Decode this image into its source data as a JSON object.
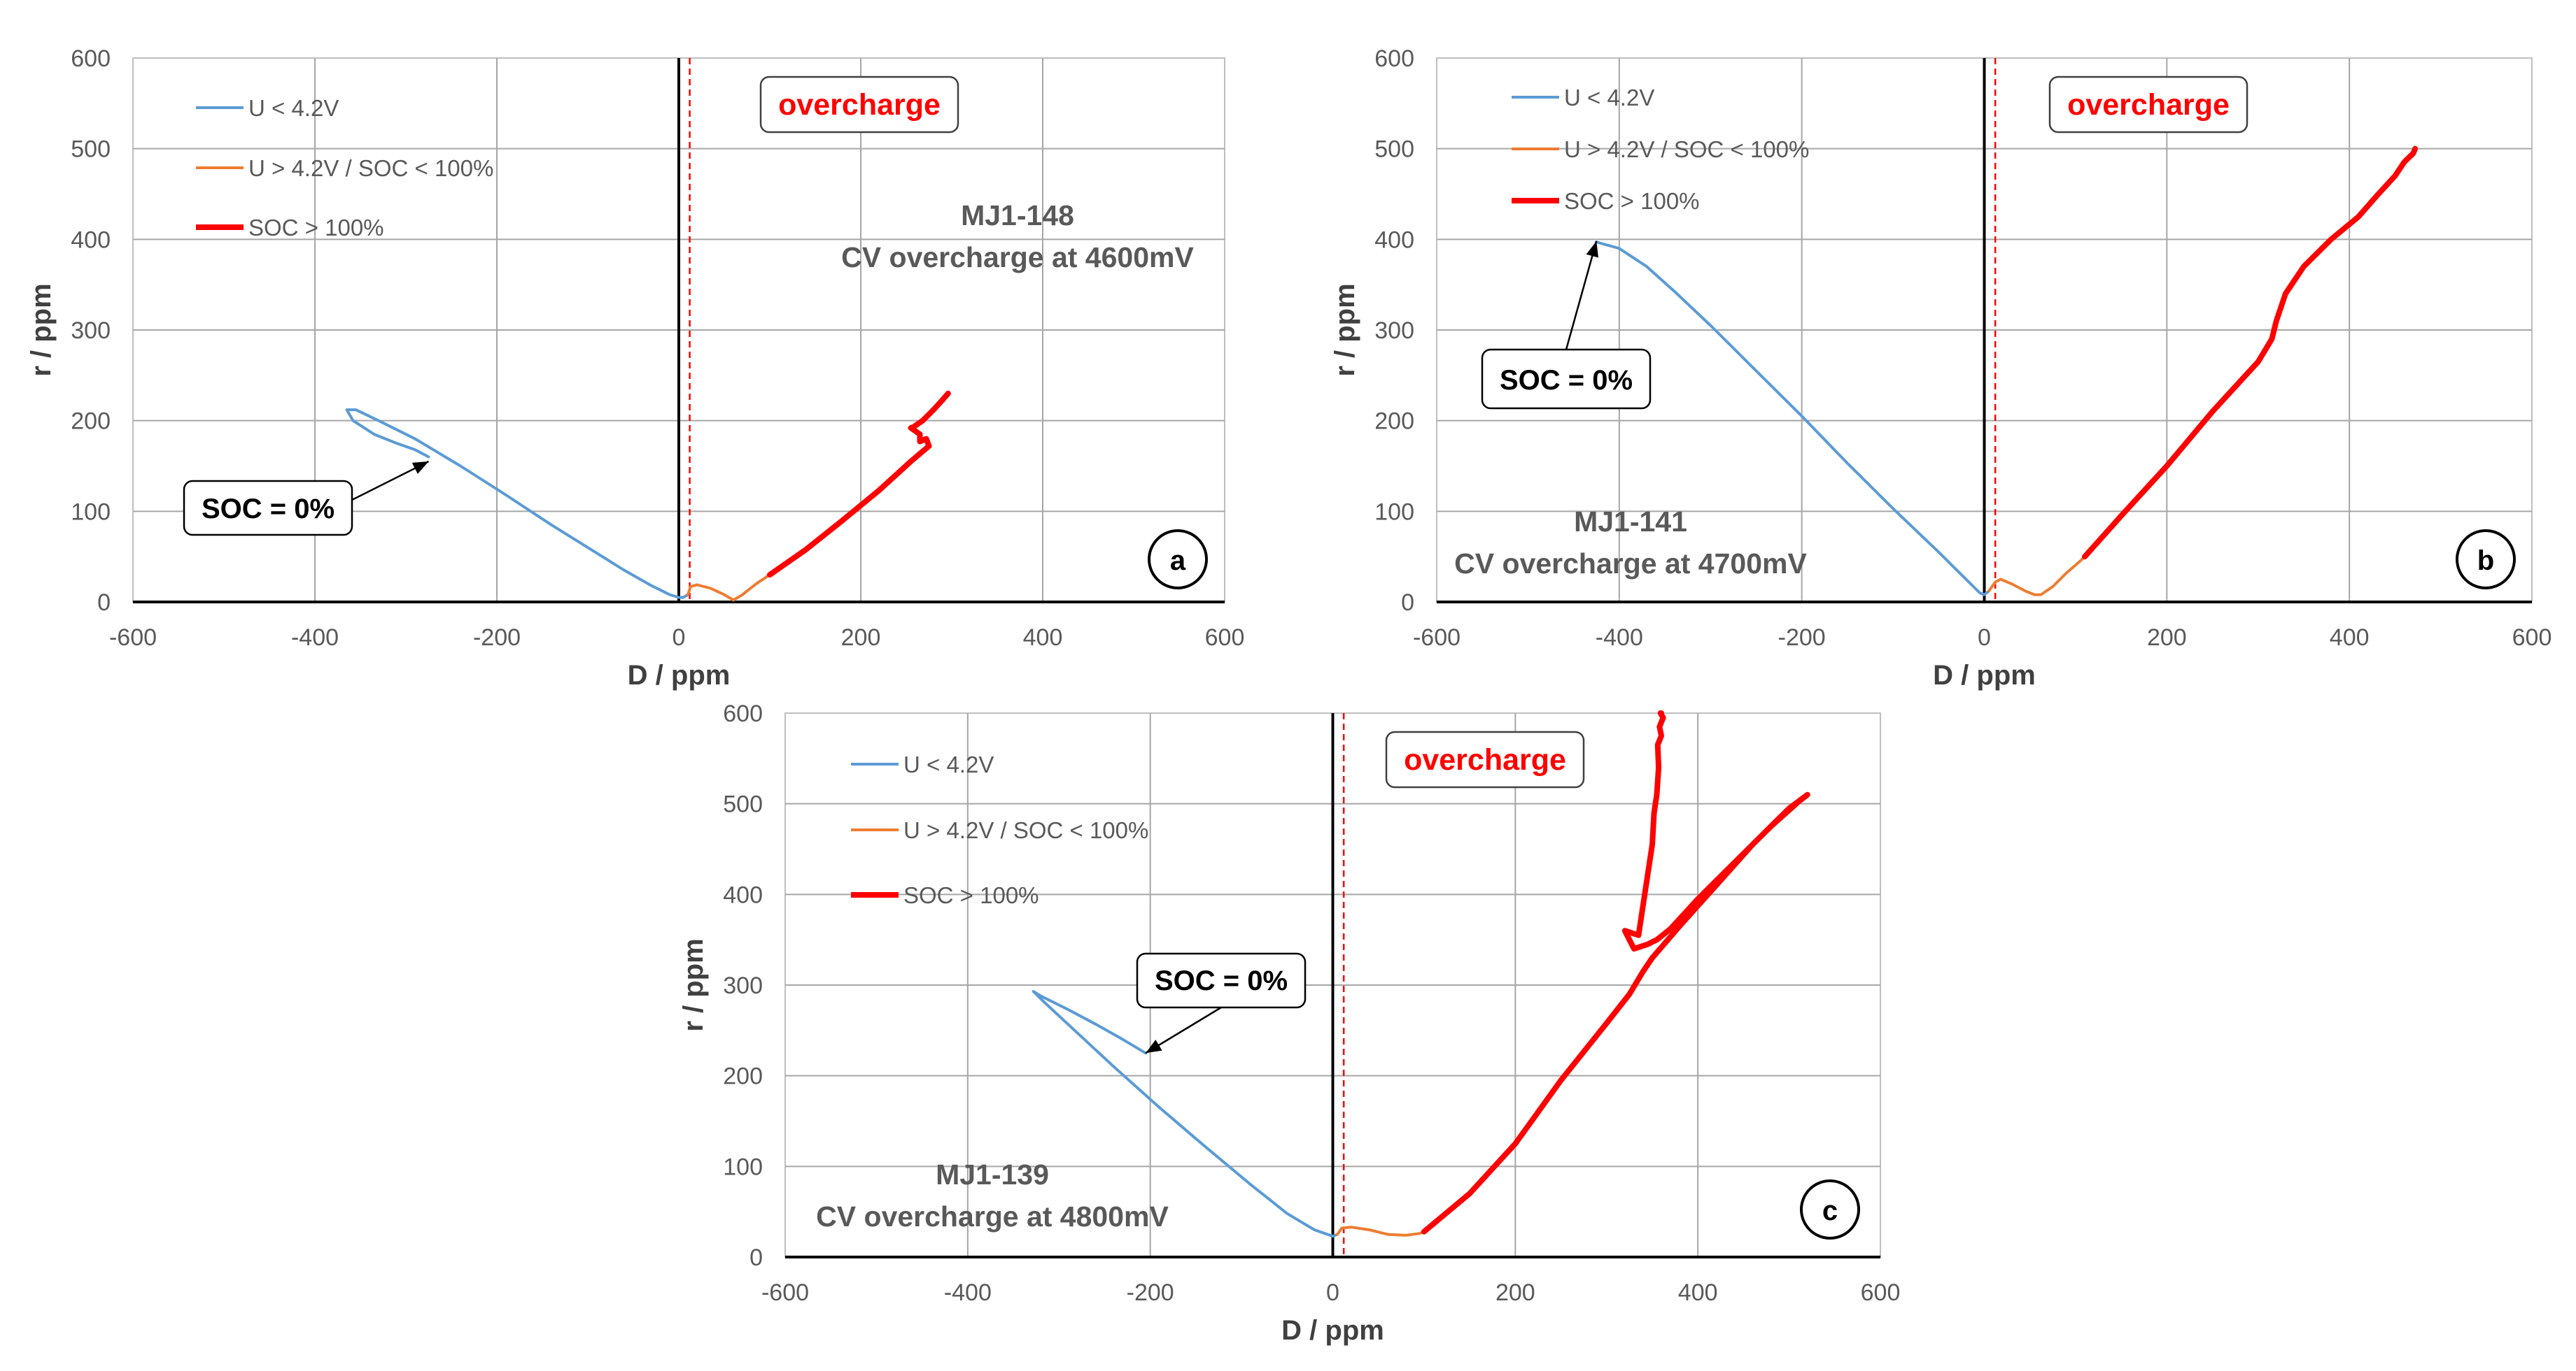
{
  "chart_data": [
    {
      "type": "line",
      "panel_label": "a",
      "sample": "MJ1-148",
      "description": "CV overcharge at 4600mV",
      "overcharge_label": "overcharge",
      "soc_label": "SOC = 0%",
      "xlabel": "D / ppm",
      "ylabel": "r / ppm",
      "xlim": [
        -600,
        600
      ],
      "ylim": [
        0,
        600
      ],
      "xticks": [
        "-600",
        "-400",
        "-200",
        "0",
        "200",
        "400",
        "600"
      ],
      "yticks": [
        "0",
        "100",
        "200",
        "300",
        "400",
        "500",
        "600"
      ],
      "soc_arrow_target": [
        -275,
        155
      ],
      "series": [
        {
          "name": "U < 4.2V",
          "color": "#5b9bd5",
          "width": "thin",
          "x": [
            -275,
            -290,
            -310,
            -335,
            -358,
            -365,
            -355,
            -330,
            -290,
            -240,
            -190,
            -140,
            -100,
            -60,
            -30,
            -10,
            0,
            5,
            10
          ],
          "y": [
            160,
            168,
            175,
            185,
            200,
            212,
            212,
            200,
            180,
            150,
            118,
            85,
            60,
            35,
            18,
            8,
            5,
            5,
            8
          ]
        },
        {
          "name": "U > 4.2V / SOC < 100%",
          "color": "#ed7d31",
          "width": "thin",
          "x": [
            10,
            13,
            20,
            35,
            50,
            60,
            70,
            85,
            100
          ],
          "y": [
            8,
            17,
            19,
            15,
            8,
            2,
            8,
            20,
            30
          ]
        },
        {
          "name": "SOC > 100%",
          "color": "#ff0000",
          "width": "thick",
          "x": [
            100,
            140,
            180,
            220,
            255,
            275,
            272,
            265,
            265,
            255,
            258,
            268,
            280,
            290,
            296
          ],
          "y": [
            30,
            58,
            90,
            123,
            155,
            172,
            180,
            177,
            185,
            192,
            193,
            200,
            212,
            223,
            230
          ]
        }
      ]
    },
    {
      "type": "line",
      "panel_label": "b",
      "sample": "MJ1-141",
      "description": "CV overcharge at 4700mV",
      "overcharge_label": "overcharge",
      "soc_label": "SOC = 0%",
      "xlabel": "D / ppm",
      "ylabel": "r / ppm",
      "xlim": [
        -600,
        600
      ],
      "ylim": [
        0,
        600
      ],
      "xticks": [
        "-600",
        "-400",
        "-200",
        "0",
        "200",
        "400",
        "600"
      ],
      "yticks": [
        "0",
        "100",
        "200",
        "300",
        "400",
        "500",
        "600"
      ],
      "soc_arrow_target": [
        -425,
        398
      ],
      "series": [
        {
          "name": "U < 4.2V",
          "color": "#5b9bd5",
          "width": "thin",
          "x": [
            -425,
            -400,
            -370,
            -340,
            -300,
            -250,
            -200,
            -150,
            -100,
            -50,
            -20,
            -5,
            0,
            5
          ],
          "y": [
            397,
            390,
            370,
            343,
            305,
            255,
            205,
            153,
            103,
            55,
            25,
            10,
            8,
            12
          ]
        },
        {
          "name": "U > 4.2V / SOC < 100%",
          "color": "#ed7d31",
          "width": "thin",
          "x": [
            5,
            12,
            18,
            30,
            45,
            55,
            62,
            75,
            90,
            105,
            110
          ],
          "y": [
            12,
            22,
            25,
            20,
            12,
            8,
            8,
            17,
            32,
            45,
            50
          ]
        },
        {
          "name": "SOC > 100%",
          "color": "#ff0000",
          "width": "thick",
          "x": [
            110,
            150,
            200,
            250,
            300,
            315,
            320,
            330,
            350,
            380,
            410,
            430,
            450,
            460,
            465,
            470,
            472
          ],
          "y": [
            50,
            95,
            150,
            210,
            265,
            290,
            310,
            340,
            370,
            400,
            425,
            448,
            470,
            485,
            490,
            495,
            500
          ]
        }
      ]
    },
    {
      "type": "line",
      "panel_label": "c",
      "sample": "MJ1-139",
      "description": "CV overcharge at 4800mV",
      "overcharge_label": "overcharge",
      "soc_label": "SOC = 0%",
      "xlabel": "D / ppm",
      "ylabel": "r / ppm",
      "xlim": [
        -600,
        600
      ],
      "ylim": [
        0,
        600
      ],
      "xticks": [
        "-600",
        "-400",
        "-200",
        "0",
        "200",
        "400",
        "600"
      ],
      "yticks": [
        "0",
        "100",
        "200",
        "300",
        "400",
        "500",
        "600"
      ],
      "soc_arrow_target": [
        -205,
        225
      ],
      "series": [
        {
          "name": "U < 4.2V",
          "color": "#5b9bd5",
          "width": "thin",
          "x": [
            -205,
            -230,
            -260,
            -290,
            -320,
            -328,
            -315,
            -285,
            -240,
            -190,
            -140,
            -90,
            -50,
            -20,
            0,
            5
          ],
          "y": [
            225,
            240,
            257,
            273,
            288,
            293,
            280,
            252,
            210,
            165,
            122,
            80,
            48,
            30,
            23,
            25
          ]
        },
        {
          "name": "U > 4.2V / SOC < 100%",
          "color": "#ed7d31",
          "width": "thin",
          "x": [
            5,
            10,
            20,
            40,
            60,
            80,
            95,
            100
          ],
          "y": [
            25,
            32,
            33,
            30,
            25,
            24,
            26,
            28
          ]
        },
        {
          "name": "SOC > 100%",
          "color": "#ff0000",
          "width": "thick",
          "x": [
            100,
            150,
            200,
            250,
            300,
            325,
            340,
            350,
            380,
            420,
            460,
            500,
            520,
            510,
            480,
            440,
            400,
            370,
            355,
            345,
            330,
            320,
            335,
            350,
            352,
            355,
            357,
            356,
            360,
            358,
            362,
            359,
            360
          ],
          "y": [
            28,
            70,
            125,
            195,
            258,
            290,
            315,
            330,
            365,
            410,
            455,
            495,
            510,
            502,
            475,
            435,
            395,
            362,
            350,
            345,
            340,
            360,
            355,
            455,
            490,
            510,
            540,
            565,
            575,
            585,
            595,
            600,
            600
          ]
        }
      ]
    }
  ],
  "legend_labels": [
    "U < 4.2V",
    "U > 4.2V / SOC < 100%",
    "SOC > 100%"
  ]
}
